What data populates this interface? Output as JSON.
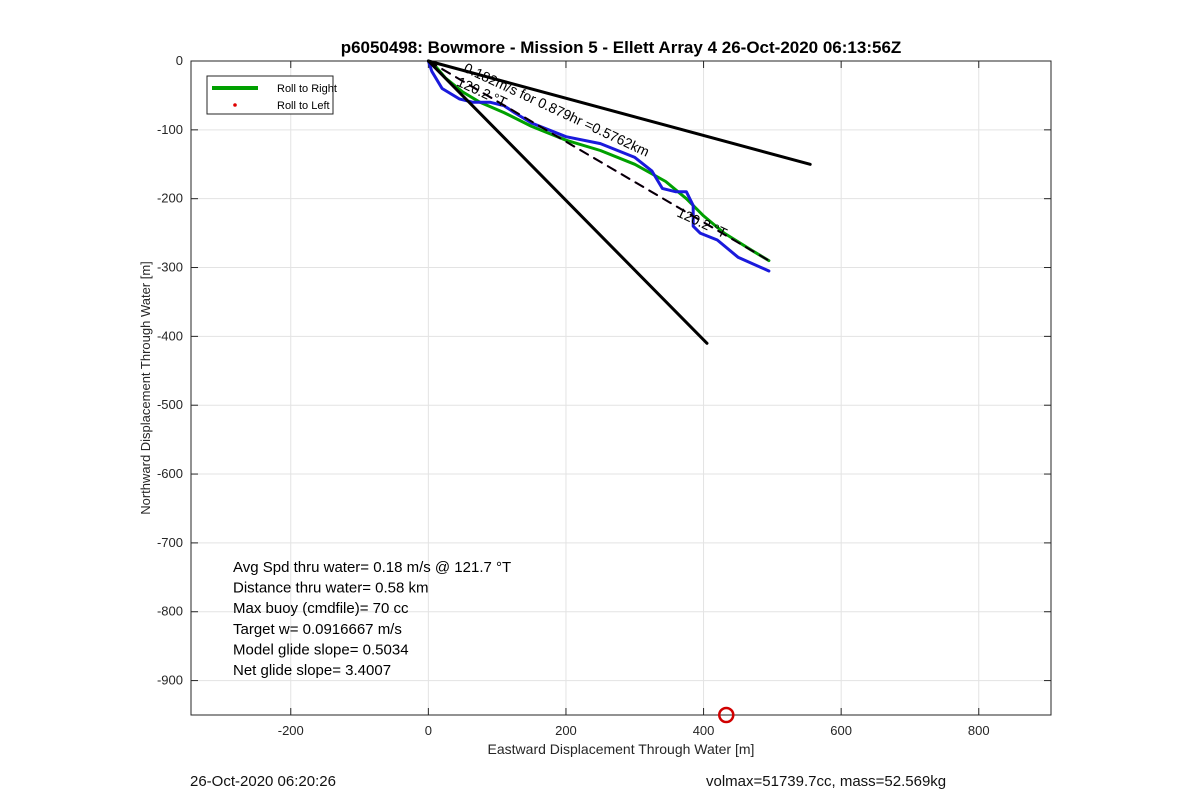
{
  "chart_data": {
    "type": "line",
    "title": "p6050498: Bowmore - Mission 5 - Ellett Array 4 26-Oct-2020 06:13:56Z",
    "xlabel": "Eastward Displacement Through Water [m]",
    "ylabel": "Northward Displacement Through Water [m]",
    "xlim": [
      -345,
      905
    ],
    "ylim": [
      -950,
      0
    ],
    "xticks": [
      -200,
      0,
      200,
      400,
      600,
      800
    ],
    "yticks": [
      0,
      -100,
      -200,
      -300,
      -400,
      -500,
      -600,
      -700,
      -800,
      -900
    ],
    "grid": true,
    "legend": {
      "placement": "top-left",
      "entries": [
        {
          "label": "Roll to Right",
          "color": "#00a000",
          "style": "line"
        },
        {
          "label": "Roll to Left",
          "color": "#e00000",
          "style": "dot"
        }
      ]
    },
    "series": [
      {
        "color": "#00a000",
        "points": [
          [
            0,
            0
          ],
          [
            8,
            -5
          ],
          [
            25,
            -25
          ],
          [
            50,
            -45
          ],
          [
            75,
            -60
          ],
          [
            110,
            -75
          ],
          [
            150,
            -95
          ],
          [
            200,
            -115
          ],
          [
            250,
            -130
          ],
          [
            300,
            -150
          ],
          [
            345,
            -175
          ],
          [
            375,
            -200
          ],
          [
            400,
            -225
          ],
          [
            430,
            -250
          ],
          [
            470,
            -275
          ],
          [
            495,
            -290
          ]
        ]
      },
      {
        "color": "#1a1adc",
        "points": [
          [
            0,
            0
          ],
          [
            5,
            -15
          ],
          [
            20,
            -40
          ],
          [
            45,
            -55
          ],
          [
            65,
            -60
          ],
          [
            90,
            -60
          ],
          [
            110,
            -65
          ],
          [
            125,
            -75
          ],
          [
            150,
            -90
          ],
          [
            200,
            -110
          ],
          [
            250,
            -120
          ],
          [
            300,
            -140
          ],
          [
            325,
            -160
          ],
          [
            340,
            -185
          ],
          [
            360,
            -190
          ],
          [
            375,
            -190
          ],
          [
            385,
            -210
          ],
          [
            385,
            -240
          ],
          [
            395,
            -250
          ],
          [
            420,
            -260
          ],
          [
            450,
            -285
          ],
          [
            495,
            -305
          ]
        ]
      },
      {
        "color": "#e020e0",
        "dashed": true,
        "points": [
          [
            0,
            0
          ],
          [
            495,
            -290
          ]
        ]
      },
      {
        "color": "#000000",
        "points": [
          [
            0,
            0
          ],
          [
            555,
            -150
          ]
        ]
      },
      {
        "color": "#000000",
        "points": [
          [
            0,
            0
          ],
          [
            405,
            -410
          ]
        ]
      },
      {
        "color": "#000000",
        "dashed": true,
        "points": [
          [
            0,
            0
          ],
          [
            495,
            -290
          ]
        ]
      }
    ],
    "annotations": [
      {
        "text": "0.182m/s for 0.879hr =0.5762km",
        "x": 50,
        "y": -15,
        "angle": 25
      },
      {
        "text": "120.2 °T",
        "x": 40,
        "y": -35,
        "angle": 25
      },
      {
        "text": "120.2 °T",
        "x": 360,
        "y": -225,
        "angle": 25
      }
    ],
    "marker": {
      "x": 433,
      "y": -950,
      "color": "#d00000",
      "shape": "circle"
    },
    "stats": [
      "Avg Spd thru water=  0.18 m/s @ 121.7 °T",
      "Distance thru water=  0.58 km",
      "Max buoy (cmdfile)= 70 cc",
      "Target w= 0.0916667 m/s",
      "Model glide slope= 0.5034",
      "Net glide slope= 3.4007"
    ]
  },
  "footer": {
    "timestamp": "26-Oct-2020 06:20:26",
    "summary": "volmax=51739.7cc, mass=52.569kg"
  }
}
